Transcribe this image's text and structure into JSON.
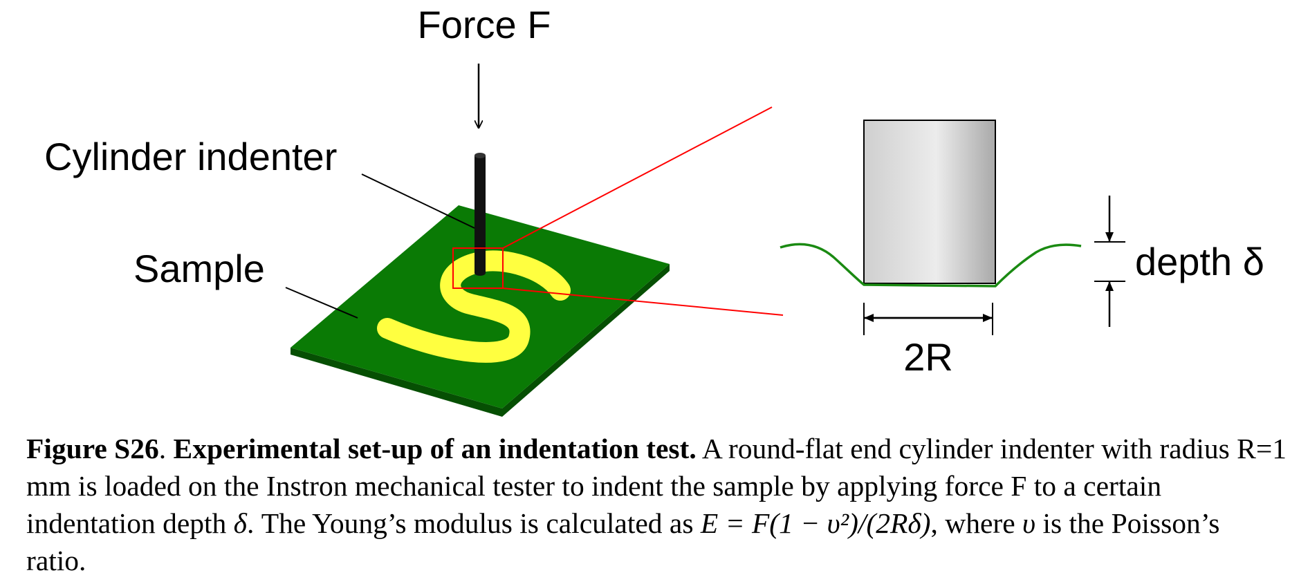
{
  "labels": {
    "force": "Force F",
    "indenter": "Cylinder indenter",
    "sample": "Sample",
    "sample_letter": "S",
    "depth": "depth δ",
    "width": "2R"
  },
  "colors": {
    "board": "#0a7a05",
    "board_edge": "#064f03",
    "letter": "#ffff40",
    "zoom": "#ff0000",
    "surface_curve": "#1a8a12"
  },
  "caption": {
    "label": "Figure S26",
    "sep": ". ",
    "title": "Experimental set-up of an indentation test.",
    "text1": " A round-flat end cylinder indenter with radius R=1 mm is loaded on the Instron mechanical tester to indent the sample by applying force F to a certain indentation depth ",
    "delta": "δ",
    "text2": ". The Young’s modulus is calculated as ",
    "formula": "E = F(1 − υ²)/(2Rδ)",
    "text3": ", where ",
    "nu": "υ",
    "text4": " is the Poisson’s ratio."
  }
}
